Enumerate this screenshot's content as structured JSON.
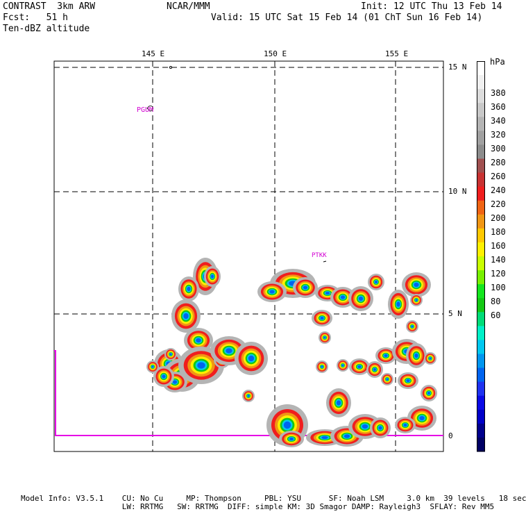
{
  "header": {
    "model": "CONTRAST  3km ARW",
    "forecast": "Fcst:   51 h",
    "field": "Ten-dBZ altitude",
    "center": "NCAR/MMM",
    "init": "Init: 12 UTC Thu 13 Feb 14",
    "valid": "Valid: 15 UTC Sat 15 Feb 14 (01 ChT Sun 16 Feb 14)"
  },
  "map": {
    "lon_labels": [
      "145 E",
      "150 E",
      "155 E"
    ],
    "lat_labels": [
      "15 N",
      "10 N",
      "5 N",
      "0"
    ],
    "stations": [
      {
        "id": "PGUM",
        "lon": 144.8,
        "lat": 13.5
      },
      {
        "id": "PTKK",
        "lon": 151.8,
        "lat": 7.3
      }
    ]
  },
  "colorbar": {
    "unit": "hPa",
    "labels": [
      "380",
      "360",
      "340",
      "320",
      "300",
      "280",
      "260",
      "240",
      "220",
      "200",
      "180",
      "160",
      "140",
      "120",
      "100",
      "80",
      "60"
    ],
    "colors": [
      "#ffffff",
      "#f0f0f0",
      "#dcdcdc",
      "#c8c8c8",
      "#b4b4b4",
      "#a0a0a0",
      "#8c8c8c",
      "#a05050",
      "#c83232",
      "#f01e1e",
      "#f06414",
      "#f09614",
      "#ffc800",
      "#fff000",
      "#c8ff00",
      "#78f000",
      "#14e61e",
      "#14c814",
      "#00dc78",
      "#00f0c8",
      "#00c8f0",
      "#0096f0",
      "#0064f0",
      "#1e32f0",
      "#0a0ae6",
      "#0000c8",
      "#00008c",
      "#000064"
    ]
  },
  "footer": {
    "line1": "Model Info: V3.5.1    CU: No Cu     MP: Thompson     PBL: YSU      SF: Noah LSM     3.0 km  39 levels   18 sec",
    "line2": "                      LW: RRTMG   SW: RRTMG  DIFF: simple KM: 3D Smagor DAMP: Rayleigh3  SFLAY: Rev MM5"
  }
}
